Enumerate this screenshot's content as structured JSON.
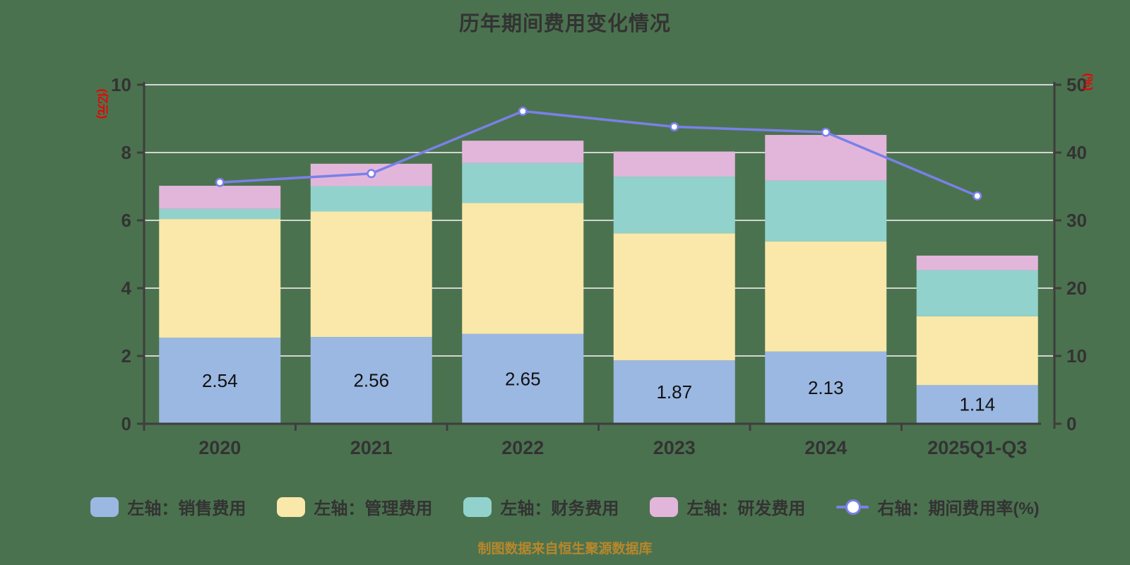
{
  "title": "历年期间费用变化情况",
  "source_note": "制图数据来自恒生聚源数据库",
  "colors": {
    "background": "#4B724F",
    "title_text": "#333333",
    "axis_line": "#3E3E3E",
    "tick_label": "#333333",
    "grid_line": "#D4D4D4",
    "axis_name_red": "#EE0000",
    "bar_label": "#111111",
    "source_note_text": "#B8872B",
    "legend_text": "#333333",
    "series": {
      "sales": "#9BB8E2",
      "management": "#F9E8A9",
      "finance": "#92D2CC",
      "rnd": "#E2B6DB",
      "expense_ratio_line": "#7A80E8",
      "marker_fill": "#FFFFFF"
    }
  },
  "left_axis": {
    "name": "(亿元)",
    "min": 0,
    "max": 10,
    "ticks": [
      0,
      2,
      4,
      6,
      8,
      10
    ]
  },
  "right_axis": {
    "name": "(%)",
    "min": 0,
    "max": 50,
    "ticks": [
      0,
      10,
      20,
      30,
      40,
      50
    ]
  },
  "legend": {
    "items": [
      {
        "label": "左轴：销售费用",
        "marker": "rect",
        "color_key": "sales"
      },
      {
        "label": "左轴：管理费用",
        "marker": "rect",
        "color_key": "management"
      },
      {
        "label": "左轴：财务费用",
        "marker": "rect",
        "color_key": "finance"
      },
      {
        "label": "左轴：研发费用",
        "marker": "rect",
        "color_key": "rnd"
      },
      {
        "label": "右轴：期间费用率(%)",
        "marker": "line",
        "color_key": "expense_ratio_line"
      }
    ]
  },
  "chart_data": {
    "type": "bar",
    "subtype": "stacked-bar-with-line",
    "title": "历年期间费用变化情况",
    "categories": [
      "2020",
      "2021",
      "2022",
      "2023",
      "2024",
      "2025Q1-Q3"
    ],
    "series": [
      {
        "name": "左轴：销售费用",
        "type": "bar",
        "stack": "total",
        "axis": "left",
        "color_key": "sales",
        "values": [
          2.54,
          2.56,
          2.65,
          1.87,
          2.13,
          1.14
        ],
        "show_labels": true
      },
      {
        "name": "左轴：管理费用",
        "type": "bar",
        "stack": "total",
        "axis": "left",
        "color_key": "management",
        "values": [
          3.5,
          3.7,
          3.86,
          3.75,
          3.25,
          2.03
        ]
      },
      {
        "name": "左轴：财务费用",
        "type": "bar",
        "stack": "total",
        "axis": "left",
        "color_key": "finance",
        "values": [
          0.3,
          0.75,
          1.18,
          1.67,
          1.79,
          1.36
        ]
      },
      {
        "name": "左轴：研发费用",
        "type": "bar",
        "stack": "total",
        "axis": "left",
        "color_key": "rnd",
        "values": [
          0.68,
          0.66,
          0.66,
          0.74,
          1.35,
          0.43
        ]
      },
      {
        "name": "右轴：期间费用率(%)",
        "type": "line",
        "axis": "right",
        "color_key": "expense_ratio_line",
        "values": [
          35.6,
          36.9,
          46.1,
          43.8,
          43.0,
          33.6
        ]
      }
    ],
    "bar_value_labels": [
      "2.54",
      "2.56",
      "2.65",
      "1.87",
      "2.13",
      "1.14"
    ],
    "xlabel": "",
    "ylabel_left": "(亿元)",
    "ylabel_right": "(%)",
    "ylim_left": [
      0,
      10
    ],
    "ylim_right": [
      0,
      50
    ],
    "grid": true,
    "legend_position": "bottom"
  }
}
